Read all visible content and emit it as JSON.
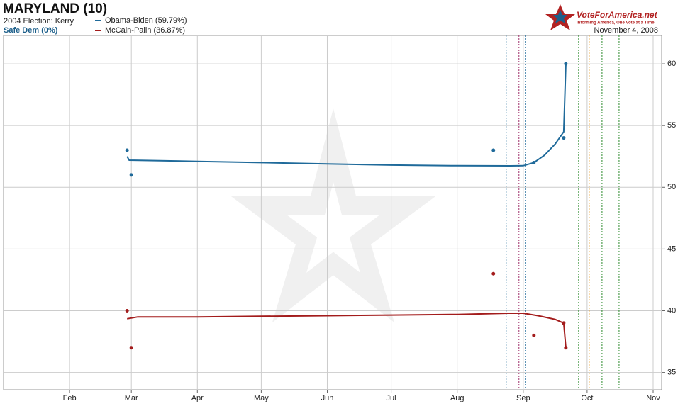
{
  "chart_data": {
    "type": "line",
    "title": "MARYLAND (10)",
    "info": [
      "2004 Election: Kerry",
      "Safe Dem (0%)"
    ],
    "date": "November 4, 2008",
    "logo": [
      "VoteForAmerica.net",
      "Informing America, One Vote at a Time"
    ],
    "xlim": [
      1,
      310
    ],
    "xticks": [
      {
        "value": 32,
        "label": "Feb"
      },
      {
        "value": 61,
        "label": "Mar"
      },
      {
        "value": 92,
        "label": "Apr"
      },
      {
        "value": 122,
        "label": "May"
      },
      {
        "value": 153,
        "label": "Jun"
      },
      {
        "value": 183,
        "label": "Jul"
      },
      {
        "value": 214,
        "label": "Aug"
      },
      {
        "value": 245,
        "label": "Sep"
      },
      {
        "value": 275,
        "label": "Oct"
      },
      {
        "value": 306,
        "label": "Nov"
      }
    ],
    "ylim": [
      33.6,
      62.3
    ],
    "yticks": [
      35,
      40,
      45,
      50,
      55,
      60
    ],
    "grid": true,
    "series": [
      {
        "name": "Obama-Biden (59.79%)",
        "color": "#1f6a9a",
        "x": [
          59,
          60,
          92,
          122,
          153,
          183,
          214,
          239,
          245,
          250,
          255,
          260,
          264,
          265
        ],
        "values": [
          52.5,
          52.2,
          52.1,
          52.0,
          51.9,
          51.8,
          51.75,
          51.74,
          51.75,
          52.0,
          52.6,
          53.5,
          54.5,
          60
        ],
        "poll_x": [
          59,
          61,
          231,
          250,
          264,
          265
        ],
        "poll_values": [
          53,
          51,
          53,
          52,
          54,
          60
        ]
      },
      {
        "name": "McCain-Palin (36.87%)",
        "color": "#a31c1c",
        "x": [
          59,
          64,
          92,
          122,
          153,
          183,
          214,
          238,
          245,
          252,
          260,
          264,
          265
        ],
        "values": [
          39.35,
          39.5,
          39.5,
          39.55,
          39.6,
          39.65,
          39.7,
          39.8,
          39.8,
          39.6,
          39.3,
          39.0,
          37
        ],
        "poll_x": [
          59,
          61,
          231,
          250,
          264,
          265
        ],
        "poll_values": [
          40,
          37,
          43,
          38,
          39,
          37
        ]
      }
    ],
    "vlines": [
      {
        "x": 237,
        "color": "#1f6a9a"
      },
      {
        "x": 243,
        "color": "#a0306a"
      },
      {
        "x": 246,
        "color": "#1f6a9a"
      },
      {
        "x": 271,
        "color": "#2e8b2e"
      },
      {
        "x": 276,
        "color": "#e8a030"
      },
      {
        "x": 282,
        "color": "#2e8b2e"
      },
      {
        "x": 290,
        "color": "#2e8b2e"
      }
    ]
  }
}
